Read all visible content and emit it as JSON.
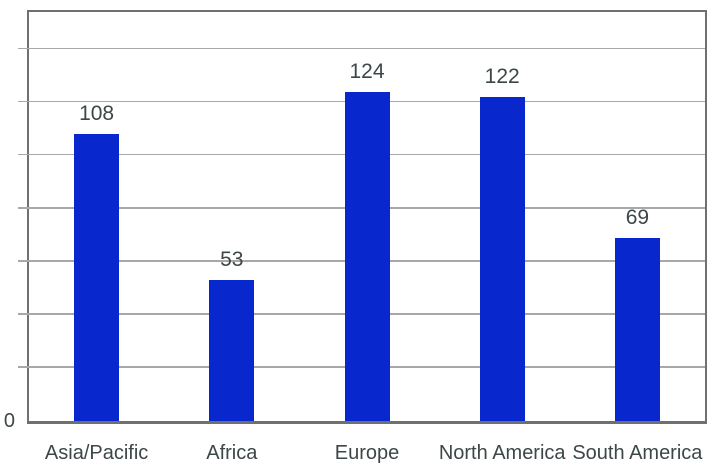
{
  "chart_data": {
    "type": "bar",
    "categories": [
      "Asia/Pacific",
      "Africa",
      "Europe",
      "North America",
      "South America"
    ],
    "values": [
      108,
      53,
      124,
      122,
      69
    ],
    "title": "",
    "xlabel": "",
    "ylabel": "",
    "ylim": [
      0,
      154
    ],
    "grid": true,
    "gridline_step": 20,
    "y_axis_visible_tick_label": "0",
    "value_labels_shown": true,
    "legend": false
  },
  "colors": {
    "bar": "#0827cc",
    "gridline": "#a8a8a8",
    "frame": "#707070",
    "text": "#3d4747",
    "background": "#ffffff"
  }
}
